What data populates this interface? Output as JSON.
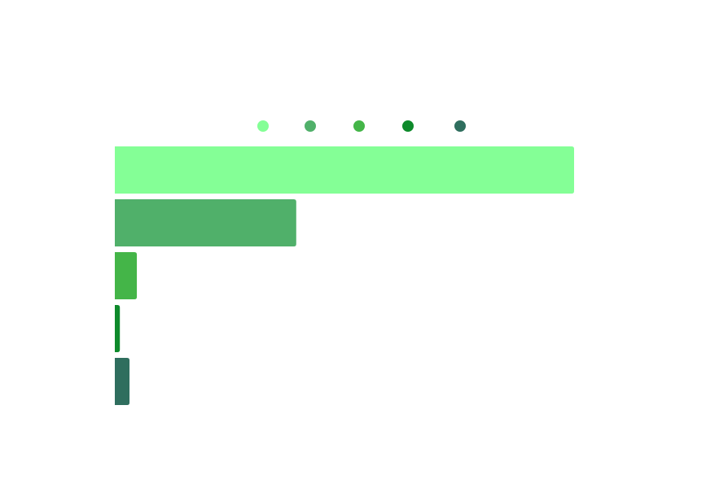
{
  "chart_data": {
    "type": "bar",
    "orientation": "horizontal",
    "categories": [
      "",
      "",
      "",
      "",
      ""
    ],
    "values": [
      100,
      39.5,
      4.8,
      1.1,
      3.2
    ],
    "colors": [
      "#84ff96",
      "#50b06a",
      "#44b548",
      "#0e8a2b",
      "#2f6e5e"
    ],
    "title": "",
    "xlabel": "",
    "ylabel": "",
    "xlim": [
      0,
      100
    ],
    "grid": false,
    "legend": {
      "placement": "top",
      "entries": [
        {
          "label": "",
          "color": "#84ff96"
        },
        {
          "label": "",
          "color": "#50b06a"
        },
        {
          "label": "",
          "color": "#44b548"
        },
        {
          "label": "",
          "color": "#0e8a2b"
        },
        {
          "label": "",
          "color": "#2f6e5e"
        }
      ]
    }
  }
}
